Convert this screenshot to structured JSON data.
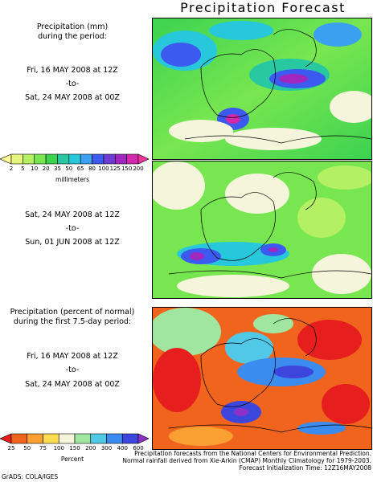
{
  "title": "Precipitation Forecast",
  "panel1": {
    "heading_line1": "Precipitation (mm)",
    "heading_line2": "during the period:",
    "start": "Fri, 16 MAY 2008 at 12Z",
    "to": "-to-",
    "end": "Sat, 24 MAY 2008 at 00Z"
  },
  "colorbar_mm": {
    "ticks": [
      "2",
      "5",
      "10",
      "20",
      "35",
      "50",
      "65",
      "80",
      "100",
      "125",
      "150",
      "200"
    ],
    "units": "millimeters",
    "colors": [
      "#ffff9a",
      "#e6f57d",
      "#b4f064",
      "#78e650",
      "#3cd250",
      "#28c8a0",
      "#28c8dc",
      "#3ca0f0",
      "#3c5af0",
      "#6e3cd2",
      "#a028be",
      "#d228aa",
      "#f0329b"
    ]
  },
  "panel2": {
    "start": "Sat, 24 MAY 2008 at 12Z",
    "to": "-to-",
    "end": "Sun, 01 JUN 2008 at 12Z"
  },
  "panel3": {
    "heading_line1": "Precipitation (percent of normal)",
    "heading_line2": "during the first 7.5-day period:",
    "start": "Fri, 16 MAY 2008 at 12Z",
    "to": "-to-",
    "end": "Sat, 24 MAY 2008 at 00Z"
  },
  "colorbar_pct": {
    "ticks": [
      "25",
      "50",
      "75",
      "100",
      "150",
      "200",
      "300",
      "400",
      "600"
    ],
    "units": "Percent",
    "colors": [
      "#e61e1e",
      "#f0641e",
      "#faa032",
      "#ffdc50",
      "#f5f5dc",
      "#a0e6a0",
      "#50c8e6",
      "#3c8cf0",
      "#3c46dc",
      "#8c32c8"
    ]
  },
  "credits": {
    "line1": "Precipitation forecasts from the National Centers for Environmental Prediction.",
    "line2": "Normal rainfall derived from Xie-Arkin (CMAP) Monthly Climatology for 1979-2003.",
    "line3": "Forecast Initialization Time: 12Z16MAY2008"
  },
  "footer": "GrADS: COLA/IGES"
}
